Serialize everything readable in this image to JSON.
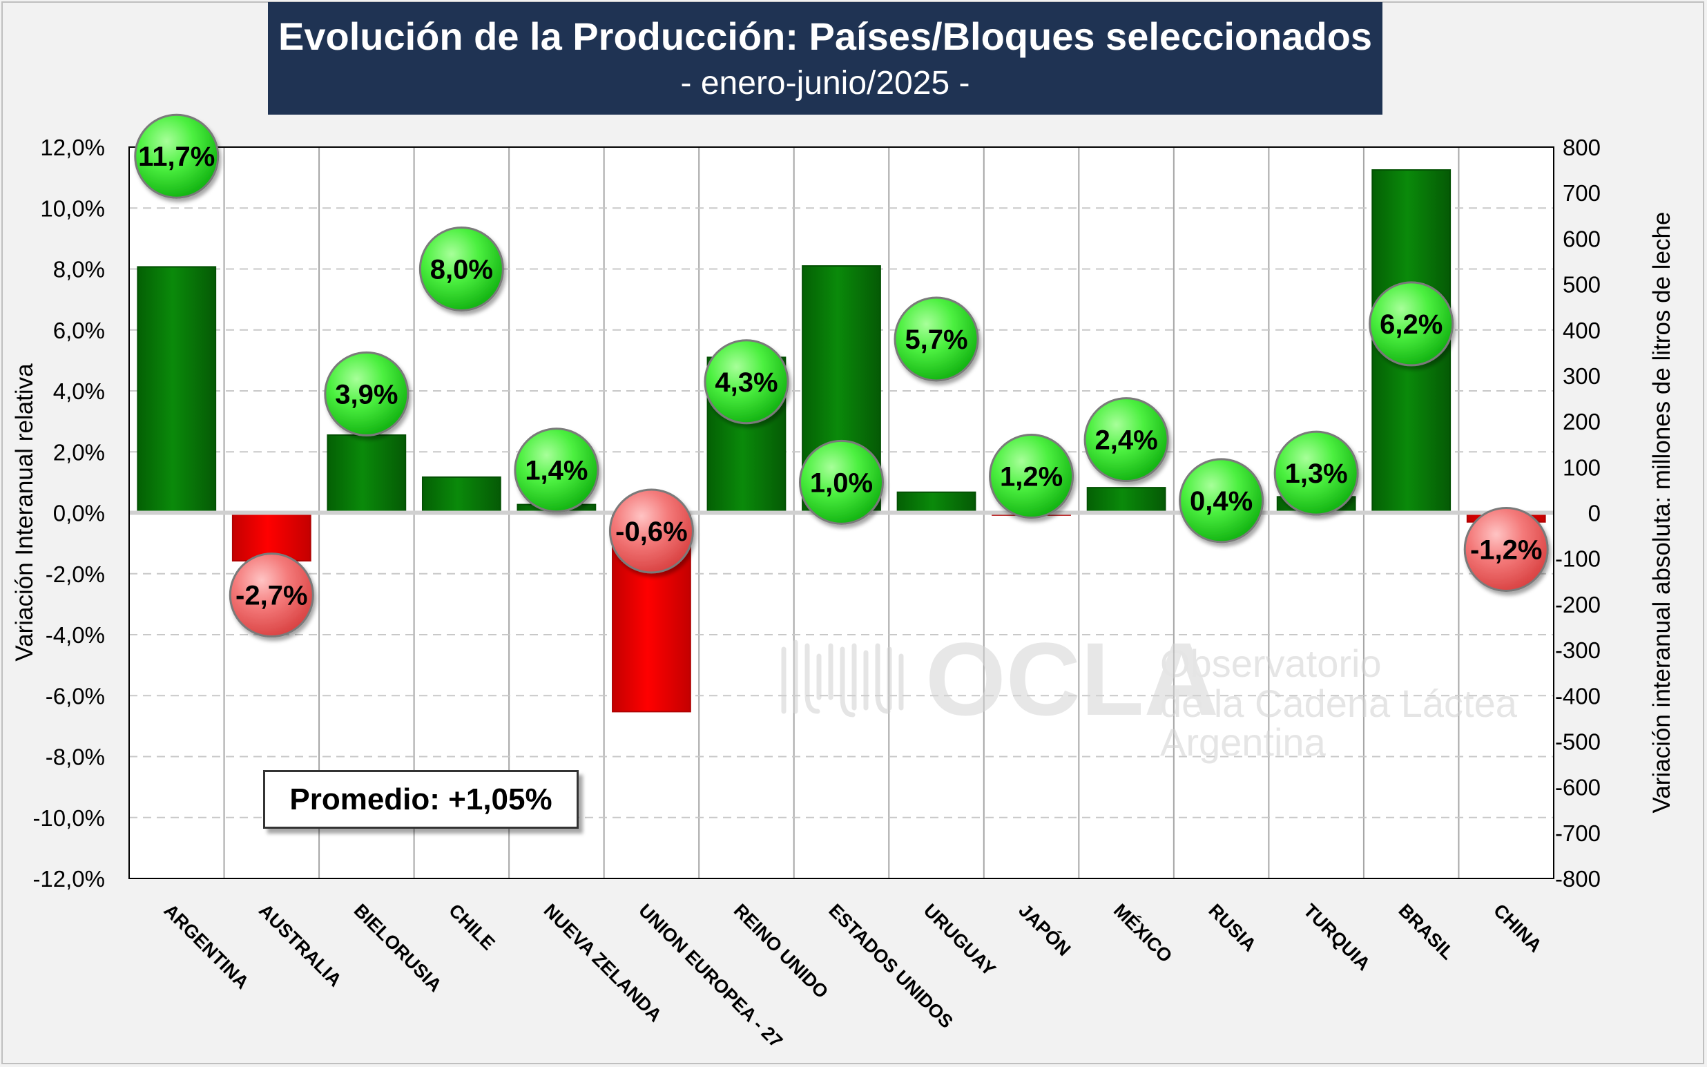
{
  "chart_data": {
    "type": "bar",
    "title": "Evolución de la Producción: Países/Bloques seleccionados",
    "subtitle": "- enero-junio/2025 -",
    "categories": [
      "ARGENTINA",
      "AUSTRALIA",
      "BIELORUSIA",
      "CHILE",
      "NUEVA ZELANDA",
      "UNION EUROPEA - 27",
      "REINO UNIDO",
      "ESTADOS UNIDOS",
      "URUGUAY",
      "JAPÓN",
      "MÉXICO",
      "RUSIA",
      "TURQUIA",
      "BRASIL",
      "CHINA"
    ],
    "series": [
      {
        "axis": "right",
        "values": [
          538,
          -105,
          170,
          78,
          18,
          -435,
          340,
          540,
          45,
          -5,
          55,
          0,
          35,
          750,
          -20
        ],
        "colors_by_sign": {
          "positive": "#0a8a0a",
          "negative": "#ff0000"
        }
      },
      {
        "axis": "left",
        "values": [
          11.7,
          -2.7,
          3.9,
          8.0,
          1.4,
          -0.6,
          4.3,
          1.0,
          5.7,
          1.2,
          2.4,
          0.4,
          1.3,
          6.2,
          -1.2
        ],
        "labels": [
          "11,7%",
          "-2,7%",
          "3,9%",
          "8,0%",
          "1,4%",
          "-0,6%",
          "4,3%",
          "1,0%",
          "5,7%",
          "1,2%",
          "2,4%",
          "0,4%",
          "1,3%",
          "6,2%",
          "-1,2%"
        ],
        "colors_by_sign": {
          "positive": "#22e322",
          "negative": "#f47474"
        }
      }
    ],
    "ylabel": "Variación Interanual relativa",
    "ylabel_right": "Variación interanual absoluta: millones de litros de leche",
    "ylim": [
      -12,
      12
    ],
    "ylim_right": [
      -800,
      800
    ],
    "yticks": [
      "12,0%",
      "10,0%",
      "8,0%",
      "6,0%",
      "4,0%",
      "2,0%",
      "0,0%",
      "-2,0%",
      "-4,0%",
      "-6,0%",
      "-8,0%",
      "-10,0%",
      "-12,0%"
    ],
    "yticks_right": [
      "800",
      "700",
      "600",
      "500",
      "400",
      "300",
      "200",
      "100",
      "0",
      "-100",
      "-200",
      "-300",
      "-400",
      "-500",
      "-600",
      "-700",
      "-800"
    ],
    "grid": true,
    "note": "Promedio: +1,05%"
  },
  "watermark": {
    "name": "OCLA",
    "line1": "Observatorio",
    "line2": "de la Cadena Láctea",
    "line3": "Argentina"
  }
}
